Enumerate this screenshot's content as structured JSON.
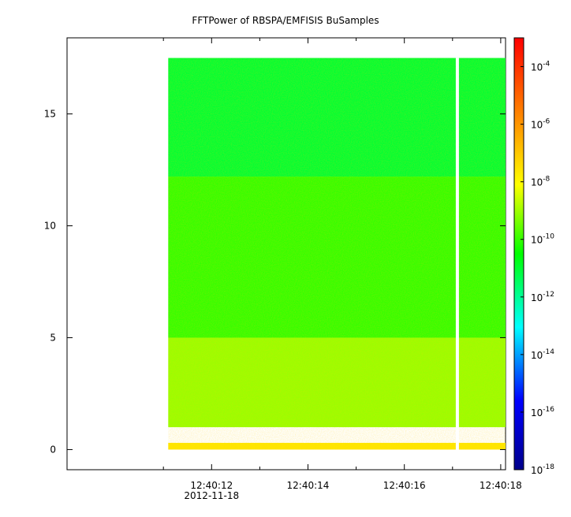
{
  "chart_data": {
    "type": "heatmap",
    "title": "FFTPower of RBSPA/EMFISIS  BuSamples",
    "xlabel": "",
    "ylabel": "",
    "x_tick_labels": [
      "12:40:12",
      "12:40:14",
      "12:40:16",
      "12:40:18"
    ],
    "x_tick_values": [
      12,
      14,
      16,
      18
    ],
    "x_minor_tick_values": [
      11,
      13,
      15,
      17
    ],
    "x_date_label": "2012-11-18",
    "xlim": [
      9.0,
      18.1
    ],
    "y_tick_labels": [
      "0",
      "5",
      "10",
      "15"
    ],
    "y_tick_values": [
      0,
      5,
      10,
      15
    ],
    "ylim": [
      -0.9,
      18.4
    ],
    "data_extent": {
      "x": [
        11.1,
        18.1
      ],
      "y": [
        0.0,
        17.5
      ]
    },
    "data_gap_x": 17.1,
    "colorbar": {
      "scale": "log",
      "range": [
        1e-18,
        0.001
      ],
      "colors": [
        "#00008b",
        "#0000ff",
        "#00ffff",
        "#00ff00",
        "#ffff00",
        "#ff7f00",
        "#ff0000"
      ],
      "tick_values": [
        1e-18,
        1e-16,
        1e-14,
        1e-12,
        1e-10,
        1e-08,
        1e-06,
        0.0001
      ],
      "tick_labels": [
        {
          "base": "10",
          "exp": "-18"
        },
        {
          "base": "10",
          "exp": "-16"
        },
        {
          "base": "10",
          "exp": "-14"
        },
        {
          "base": "10",
          "exp": "-12"
        },
        {
          "base": "10",
          "exp": "-10"
        },
        {
          "base": "10",
          "exp": "-8"
        },
        {
          "base": "10",
          "exp": "-6"
        },
        {
          "base": "10",
          "exp": "-4"
        }
      ]
    },
    "bands": [
      {
        "y": [
          12.2,
          17.5
        ],
        "level": 1e-11,
        "desc": "upper band"
      },
      {
        "y": [
          5.0,
          12.2
        ],
        "level": 1e-10
      },
      {
        "y": [
          1.0,
          5.0
        ],
        "level": 1e-09
      },
      {
        "y": [
          0.0,
          0.3
        ],
        "level": 3e-08
      }
    ]
  }
}
